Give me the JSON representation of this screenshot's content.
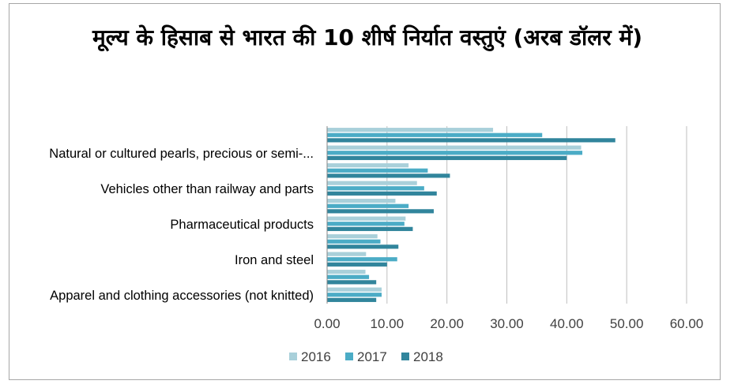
{
  "chart_data": {
    "type": "bar",
    "orientation": "horizontal",
    "title": "मूल्य के हिसाब से भारत की 10 शीर्ष निर्यात वस्तुएं (अरब डॉलर में)",
    "xlabel": "",
    "ylabel": "",
    "xlim": [
      0,
      60
    ],
    "xticks": [
      "0.00",
      "10.00",
      "20.00",
      "30.00",
      "40.00",
      "50.00",
      "60.00"
    ],
    "grid": true,
    "legend_position": "bottom",
    "categories": [
      "",
      "Natural or cultured pearls, precious or semi-...",
      "",
      "Vehicles other than railway and parts",
      "",
      "Pharmaceutical products",
      "",
      "Iron and steel",
      "",
      "Apparel and clothing accessories (not knitted)"
    ],
    "series": [
      {
        "name": "2016",
        "color": "#a9d0da",
        "values": [
          27.7,
          42.4,
          13.6,
          15.0,
          11.4,
          13.1,
          8.4,
          6.5,
          6.4,
          9.1
        ]
      },
      {
        "name": "2017",
        "color": "#4bacc6",
        "values": [
          35.9,
          42.6,
          16.8,
          16.2,
          13.6,
          12.9,
          8.9,
          11.7,
          7.0,
          9.1
        ]
      },
      {
        "name": "2018",
        "color": "#31859c",
        "values": [
          48.1,
          40.0,
          20.5,
          18.3,
          17.8,
          14.3,
          11.9,
          10.0,
          8.2,
          8.2
        ]
      }
    ]
  }
}
